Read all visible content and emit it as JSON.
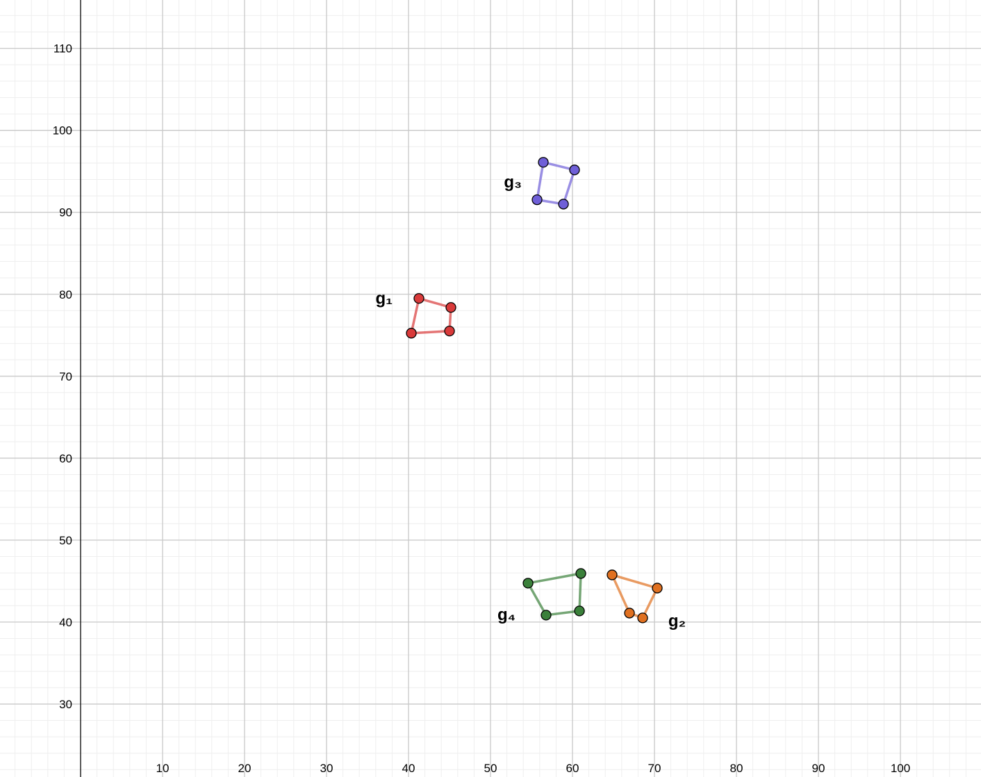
{
  "chart_data": {
    "type": "polygon",
    "xlim": [
      -9.83,
      109.83
    ],
    "ylim": [
      21.1,
      115.9
    ],
    "xticks": [
      10,
      20,
      30,
      40,
      50,
      60,
      70,
      80,
      90,
      100
    ],
    "yticks": [
      30,
      40,
      50,
      60,
      70,
      80,
      90,
      100,
      110
    ],
    "grid": true,
    "minor_grid_step": 2,
    "series": [
      {
        "name": "g₁",
        "color": "#d93a3a",
        "label_color": "#e81010",
        "x": [
          41.27,
          45.17,
          45.0,
          40.34
        ],
        "y": [
          79.49,
          78.39,
          75.51,
          75.25
        ]
      },
      {
        "name": "g₂",
        "color": "#e07020",
        "label_color": "#f2a020",
        "x": [
          64.83,
          70.34,
          68.56,
          66.95
        ],
        "y": [
          45.76,
          44.15,
          40.51,
          41.1
        ]
      },
      {
        "name": "g₃",
        "color": "#6f5fd8",
        "label_color": "#9b6cf0",
        "x": [
          56.44,
          60.25,
          58.9,
          55.68
        ],
        "y": [
          96.1,
          95.17,
          91.0,
          91.53
        ]
      },
      {
        "name": "g₄",
        "color": "#3a803a",
        "label_color": "#22a022",
        "x": [
          54.58,
          61.02,
          60.85,
          56.78
        ],
        "y": [
          44.75,
          45.93,
          41.36,
          40.85
        ]
      }
    ]
  }
}
